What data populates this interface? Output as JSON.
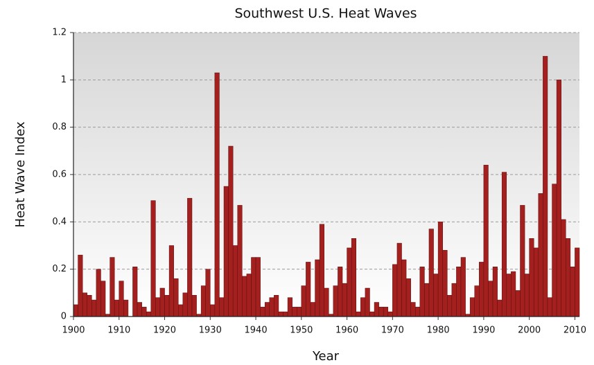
{
  "chart_data": {
    "type": "bar",
    "title": "Southwest U.S. Heat Waves",
    "x_label": "Year",
    "y_label": "Heat Wave Index",
    "x": [
      1900,
      1901,
      1902,
      1903,
      1904,
      1905,
      1906,
      1907,
      1908,
      1909,
      1910,
      1911,
      1912,
      1913,
      1914,
      1915,
      1916,
      1917,
      1918,
      1919,
      1920,
      1921,
      1922,
      1923,
      1924,
      1925,
      1926,
      1927,
      1928,
      1929,
      1930,
      1931,
      1932,
      1933,
      1934,
      1935,
      1936,
      1937,
      1938,
      1939,
      1940,
      1941,
      1942,
      1943,
      1944,
      1945,
      1946,
      1947,
      1948,
      1949,
      1950,
      1951,
      1952,
      1953,
      1954,
      1955,
      1956,
      1957,
      1958,
      1959,
      1960,
      1961,
      1962,
      1963,
      1964,
      1965,
      1966,
      1967,
      1968,
      1969,
      1970,
      1971,
      1972,
      1973,
      1974,
      1975,
      1976,
      1977,
      1978,
      1979,
      1980,
      1981,
      1982,
      1983,
      1984,
      1985,
      1986,
      1987,
      1988,
      1989,
      1990,
      1991,
      1992,
      1993,
      1994,
      1995,
      1996,
      1997,
      1998,
      1999,
      2000,
      2001,
      2002,
      2003,
      2004,
      2005,
      2006,
      2007,
      2008,
      2009,
      2010
    ],
    "values": [
      0.05,
      0.26,
      0.1,
      0.09,
      0.07,
      0.2,
      0.15,
      0.01,
      0.25,
      0.07,
      0.15,
      0.07,
      0.0,
      0.21,
      0.06,
      0.04,
      0.02,
      0.49,
      0.08,
      0.12,
      0.09,
      0.3,
      0.16,
      0.05,
      0.1,
      0.5,
      0.09,
      0.01,
      0.13,
      0.2,
      0.05,
      1.03,
      0.08,
      0.55,
      0.72,
      0.3,
      0.47,
      0.17,
      0.18,
      0.25,
      0.25,
      0.04,
      0.06,
      0.08,
      0.09,
      0.02,
      0.02,
      0.08,
      0.04,
      0.04,
      0.13,
      0.23,
      0.06,
      0.24,
      0.39,
      0.12,
      0.01,
      0.13,
      0.21,
      0.14,
      0.29,
      0.33,
      0.02,
      0.08,
      0.12,
      0.02,
      0.06,
      0.04,
      0.04,
      0.02,
      0.22,
      0.31,
      0.24,
      0.16,
      0.06,
      0.04,
      0.21,
      0.14,
      0.37,
      0.18,
      0.4,
      0.28,
      0.09,
      0.14,
      0.21,
      0.25,
      0.01,
      0.08,
      0.13,
      0.23,
      0.64,
      0.15,
      0.21,
      0.07,
      0.61,
      0.18,
      0.19,
      0.11,
      0.47,
      0.18,
      0.33,
      0.29,
      0.52,
      1.1,
      0.08,
      0.56,
      1.0,
      0.41,
      0.33,
      0.21,
      0.29
    ],
    "color": "#a3201f",
    "xlim": [
      1900,
      2011
    ],
    "xticks": [
      1900,
      1910,
      1920,
      1930,
      1940,
      1950,
      1960,
      1970,
      1980,
      1990,
      2000,
      2010
    ],
    "ylim": [
      0,
      1.2
    ],
    "yticks": [
      0,
      0.2,
      0.4,
      0.6,
      0.8,
      1,
      1.2
    ],
    "grid": true
  }
}
